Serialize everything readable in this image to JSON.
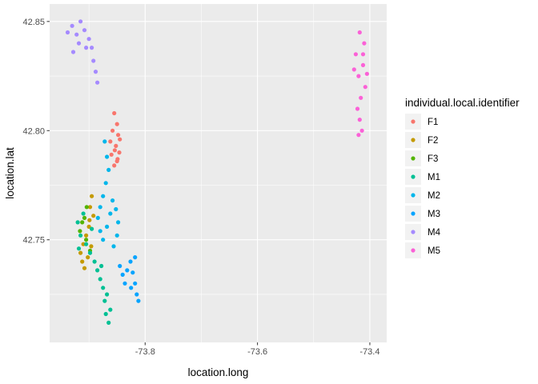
{
  "chart_data": {
    "type": "scatter",
    "xlabel": "location.long",
    "ylabel": "location.lat",
    "xlim": [
      -73.97,
      -73.37
    ],
    "ylim": [
      42.703,
      42.858
    ],
    "x_ticks": [
      -73.8,
      -73.6,
      -73.4
    ],
    "y_ticks": [
      42.75,
      42.8,
      42.85
    ],
    "x_tick_labels": [
      "-73.8",
      "-73.6",
      "-73.4"
    ],
    "y_tick_labels": [
      "42.75",
      "42.80",
      "42.85"
    ],
    "grid": true,
    "legend": {
      "title": "individual.local.identifier",
      "position": "right"
    },
    "series": [
      {
        "name": "F1",
        "color": "#F8766D",
        "points": [
          [
            -73.855,
            42.808
          ],
          [
            -73.85,
            42.803
          ],
          [
            -73.848,
            42.798
          ],
          [
            -73.852,
            42.793
          ],
          [
            -73.846,
            42.79
          ],
          [
            -73.85,
            42.786
          ],
          [
            -73.855,
            42.784
          ],
          [
            -73.86,
            42.789
          ],
          [
            -73.862,
            42.795
          ],
          [
            -73.858,
            42.8
          ],
          [
            -73.845,
            42.796
          ],
          [
            -73.854,
            42.791
          ],
          [
            -73.849,
            42.787
          ]
        ]
      },
      {
        "name": "F2",
        "color": "#C49A00",
        "points": [
          [
            -73.895,
            42.77
          ],
          [
            -73.898,
            42.765
          ],
          [
            -73.892,
            42.761
          ],
          [
            -73.9,
            42.756
          ],
          [
            -73.905,
            42.752
          ],
          [
            -73.91,
            42.748
          ],
          [
            -73.915,
            42.744
          ],
          [
            -73.912,
            42.74
          ],
          [
            -73.908,
            42.737
          ],
          [
            -73.902,
            42.742
          ],
          [
            -73.896,
            42.747
          ],
          [
            -73.899,
            42.759
          ]
        ]
      },
      {
        "name": "F3",
        "color": "#53B400",
        "points": [
          [
            -73.904,
            42.765
          ],
          [
            -73.908,
            42.76
          ],
          [
            -73.912,
            42.758
          ],
          [
            -73.916,
            42.754
          ],
          [
            -73.905,
            42.75
          ],
          [
            -73.898,
            42.745
          ]
        ]
      },
      {
        "name": "M1",
        "color": "#00C094",
        "points": [
          [
            -73.92,
            42.758
          ],
          [
            -73.915,
            42.752
          ],
          [
            -73.905,
            42.748
          ],
          [
            -73.898,
            42.744
          ],
          [
            -73.89,
            42.74
          ],
          [
            -73.885,
            42.736
          ],
          [
            -73.88,
            42.732
          ],
          [
            -73.875,
            42.728
          ],
          [
            -73.872,
            42.722
          ],
          [
            -73.87,
            42.716
          ],
          [
            -73.865,
            42.712
          ],
          [
            -73.862,
            42.718
          ],
          [
            -73.868,
            42.725
          ],
          [
            -73.878,
            42.738
          ],
          [
            -73.895,
            42.755
          ],
          [
            -73.91,
            42.762
          ],
          [
            -73.918,
            42.746
          ]
        ]
      },
      {
        "name": "M2",
        "color": "#00B6EB",
        "points": [
          [
            -73.872,
            42.795
          ],
          [
            -73.868,
            42.788
          ],
          [
            -73.865,
            42.782
          ],
          [
            -73.87,
            42.776
          ],
          [
            -73.875,
            42.77
          ],
          [
            -73.88,
            42.765
          ],
          [
            -73.884,
            42.76
          ],
          [
            -73.88,
            42.754
          ],
          [
            -73.875,
            42.75
          ],
          [
            -73.868,
            42.756
          ],
          [
            -73.862,
            42.762
          ],
          [
            -73.858,
            42.768
          ],
          [
            -73.852,
            42.764
          ],
          [
            -73.848,
            42.758
          ],
          [
            -73.85,
            42.752
          ],
          [
            -73.856,
            42.747
          ]
        ]
      },
      {
        "name": "M3",
        "color": "#06A4FF",
        "points": [
          [
            -73.845,
            42.738
          ],
          [
            -73.84,
            42.734
          ],
          [
            -73.836,
            42.73
          ],
          [
            -73.832,
            42.736
          ],
          [
            -73.826,
            42.74
          ],
          [
            -73.822,
            42.735
          ],
          [
            -73.818,
            42.73
          ],
          [
            -73.815,
            42.725
          ],
          [
            -73.812,
            42.722
          ],
          [
            -73.818,
            42.742
          ],
          [
            -73.825,
            42.728
          ]
        ]
      },
      {
        "name": "M4",
        "color": "#A58AFF",
        "points": [
          [
            -73.938,
            42.845
          ],
          [
            -73.93,
            42.848
          ],
          [
            -73.922,
            42.844
          ],
          [
            -73.915,
            42.85
          ],
          [
            -73.908,
            42.846
          ],
          [
            -73.9,
            42.842
          ],
          [
            -73.895,
            42.838
          ],
          [
            -73.892,
            42.832
          ],
          [
            -73.888,
            42.827
          ],
          [
            -73.885,
            42.822
          ],
          [
            -73.905,
            42.838
          ],
          [
            -73.918,
            42.84
          ],
          [
            -73.928,
            42.836
          ]
        ]
      },
      {
        "name": "M5",
        "color": "#FB61D7",
        "points": [
          [
            -73.418,
            42.845
          ],
          [
            -73.41,
            42.84
          ],
          [
            -73.425,
            42.835
          ],
          [
            -73.412,
            42.83
          ],
          [
            -73.42,
            42.825
          ],
          [
            -73.408,
            42.82
          ],
          [
            -73.416,
            42.815
          ],
          [
            -73.422,
            42.81
          ],
          [
            -73.418,
            42.805
          ],
          [
            -73.414,
            42.8
          ],
          [
            -73.42,
            42.798
          ],
          [
            -73.412,
            42.835
          ],
          [
            -73.428,
            42.828
          ],
          [
            -73.405,
            42.826
          ]
        ]
      }
    ]
  }
}
